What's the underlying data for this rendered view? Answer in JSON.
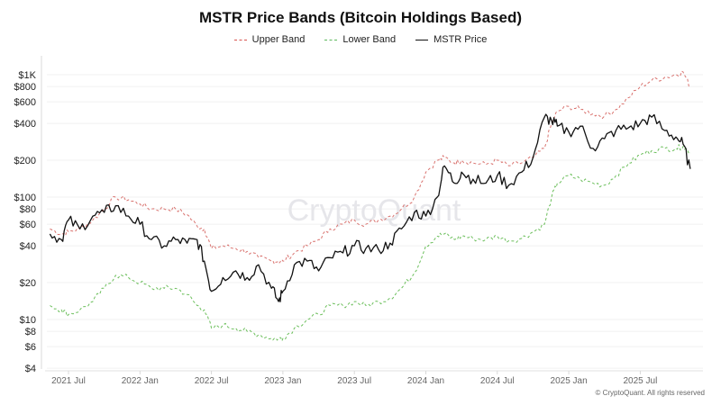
{
  "chart_data": {
    "type": "line",
    "title": "MSTR Price Bands (Bitcoin Holdings Based)",
    "xlabel": "",
    "ylabel": "",
    "yscale": "log",
    "ylim": [
      4,
      1200
    ],
    "y_ticks": [
      {
        "value": 1000,
        "label": "$1K"
      },
      {
        "value": 800,
        "label": "$800"
      },
      {
        "value": 600,
        "label": "$600"
      },
      {
        "value": 400,
        "label": "$400"
      },
      {
        "value": 200,
        "label": "$200"
      },
      {
        "value": 100,
        "label": "$100"
      },
      {
        "value": 80,
        "label": "$80"
      },
      {
        "value": 60,
        "label": "$60"
      },
      {
        "value": 40,
        "label": "$40"
      },
      {
        "value": 20,
        "label": "$20"
      },
      {
        "value": 10,
        "label": "$10"
      },
      {
        "value": 8,
        "label": "$8"
      },
      {
        "value": 6,
        "label": "$6"
      },
      {
        "value": 4,
        "label": "$4"
      }
    ],
    "x_ticks": [
      {
        "value": 2021.5,
        "label": "2021 Jul"
      },
      {
        "value": 2022.0,
        "label": "2022 Jan"
      },
      {
        "value": 2022.5,
        "label": "2022 Jul"
      },
      {
        "value": 2023.0,
        "label": "2023 Jan"
      },
      {
        "value": 2023.5,
        "label": "2023 Jul"
      },
      {
        "value": 2024.0,
        "label": "2024 Jan"
      },
      {
        "value": 2024.5,
        "label": "2024 Jul"
      },
      {
        "value": 2025.0,
        "label": "2025 Jan"
      },
      {
        "value": 2025.5,
        "label": "2025 Jul"
      }
    ],
    "xlim": [
      2021.35,
      2025.95
    ],
    "grid": true,
    "legend_position": "top-center",
    "x": [
      2021.37,
      2021.45,
      2021.5,
      2021.58,
      2021.67,
      2021.75,
      2021.83,
      2021.92,
      2022.0,
      2022.08,
      2022.17,
      2022.25,
      2022.33,
      2022.4,
      2022.45,
      2022.5,
      2022.58,
      2022.67,
      2022.75,
      2022.83,
      2022.92,
      2022.97,
      2023.0,
      2023.08,
      2023.17,
      2023.25,
      2023.33,
      2023.42,
      2023.5,
      2023.58,
      2023.67,
      2023.75,
      2023.83,
      2023.92,
      2024.0,
      2024.08,
      2024.13,
      2024.2,
      2024.25,
      2024.33,
      2024.42,
      2024.5,
      2024.58,
      2024.67,
      2024.75,
      2024.83,
      2024.88,
      2024.92,
      2025.0,
      2025.08,
      2025.17,
      2025.25,
      2025.33,
      2025.42,
      2025.5,
      2025.58,
      2025.67,
      2025.75,
      2025.8,
      2025.85
    ],
    "series": [
      {
        "name": "Upper Band",
        "color": "#d9534f",
        "style": "dashed",
        "values": [
          55,
          50,
          52,
          55,
          65,
          80,
          100,
          95,
          88,
          80,
          80,
          80,
          72,
          58,
          55,
          38,
          40,
          38,
          36,
          32,
          30,
          30,
          30,
          35,
          40,
          45,
          55,
          60,
          65,
          60,
          65,
          70,
          80,
          100,
          160,
          200,
          210,
          190,
          200,
          190,
          185,
          200,
          180,
          190,
          210,
          250,
          400,
          500,
          550,
          520,
          480,
          460,
          520,
          650,
          800,
          900,
          950,
          1000,
          1050,
          800
        ]
      },
      {
        "name": "Lower Band",
        "color": "#5cb85c",
        "style": "dashed",
        "values": [
          13,
          12,
          11,
          12,
          14,
          18,
          23,
          22,
          20,
          18,
          18,
          18,
          16,
          13,
          12,
          8.5,
          9,
          8.5,
          8,
          7.5,
          7,
          7,
          7,
          8.5,
          10,
          11,
          13,
          13,
          14,
          13,
          14,
          15,
          18,
          24,
          40,
          48,
          50,
          45,
          48,
          46,
          45,
          48,
          44,
          46,
          52,
          60,
          100,
          130,
          150,
          140,
          130,
          125,
          150,
          190,
          220,
          240,
          250,
          250,
          260,
          230
        ]
      },
      {
        "name": "MSTR Price",
        "color": "#111111",
        "style": "solid",
        "values": [
          50,
          45,
          65,
          55,
          70,
          75,
          85,
          70,
          60,
          45,
          40,
          45,
          42,
          45,
          30,
          17,
          22,
          25,
          22,
          28,
          18,
          14,
          17,
          28,
          30,
          25,
          32,
          35,
          40,
          38,
          37,
          42,
          55,
          75,
          70,
          100,
          180,
          130,
          160,
          140,
          130,
          150,
          125,
          160,
          210,
          450,
          420,
          380,
          340,
          380,
          250,
          300,
          350,
          370,
          400,
          450,
          350,
          310,
          270,
          170
        ]
      }
    ],
    "watermark": "CryptoQuant",
    "footer": "© CryptoQuant. All rights reserved"
  }
}
